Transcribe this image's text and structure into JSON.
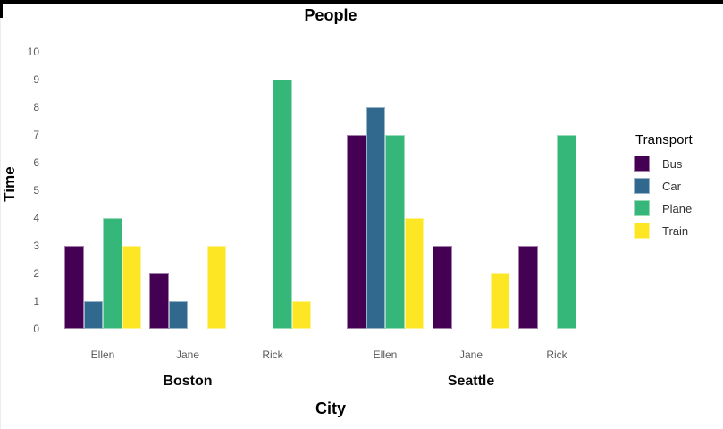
{
  "title": "People",
  "y_axis": {
    "label": "Time",
    "ticks": [
      0,
      1,
      2,
      3,
      4,
      5,
      6,
      7,
      8,
      9,
      10
    ]
  },
  "x_axis": {
    "label": "City",
    "group_labels": [
      "Boston",
      "Seattle"
    ],
    "person_labels": [
      "Ellen",
      "Jane",
      "Rick"
    ]
  },
  "legend": {
    "title": "Transport"
  },
  "chart_data": {
    "type": "bar",
    "title": "People",
    "xlabel": "City",
    "ylabel": "Time",
    "ylim": [
      0,
      10
    ],
    "grid": false,
    "legend_title": "Transport",
    "legend_position": "right",
    "palette_name": "viridis",
    "cities": [
      "Boston",
      "Seattle"
    ],
    "people": [
      "Ellen",
      "Jane",
      "Rick"
    ],
    "series": [
      {
        "name": "Bus",
        "color": "#440154",
        "values": {
          "Boston": {
            "Ellen": 3,
            "Jane": 2,
            "Rick": null
          },
          "Seattle": {
            "Ellen": 7,
            "Jane": 3,
            "Rick": 3
          }
        }
      },
      {
        "name": "Car",
        "color": "#31688E",
        "values": {
          "Boston": {
            "Ellen": 1,
            "Jane": 1,
            "Rick": null
          },
          "Seattle": {
            "Ellen": 8,
            "Jane": null,
            "Rick": null
          }
        }
      },
      {
        "name": "Plane",
        "color": "#35B779",
        "values": {
          "Boston": {
            "Ellen": 4,
            "Jane": null,
            "Rick": 9
          },
          "Seattle": {
            "Ellen": 7,
            "Jane": null,
            "Rick": 7
          }
        }
      },
      {
        "name": "Train",
        "color": "#FDE725",
        "values": {
          "Boston": {
            "Ellen": 3,
            "Jane": 3,
            "Rick": 1
          },
          "Seattle": {
            "Ellen": 4,
            "Jane": 2,
            "Rick": null
          }
        }
      }
    ]
  }
}
